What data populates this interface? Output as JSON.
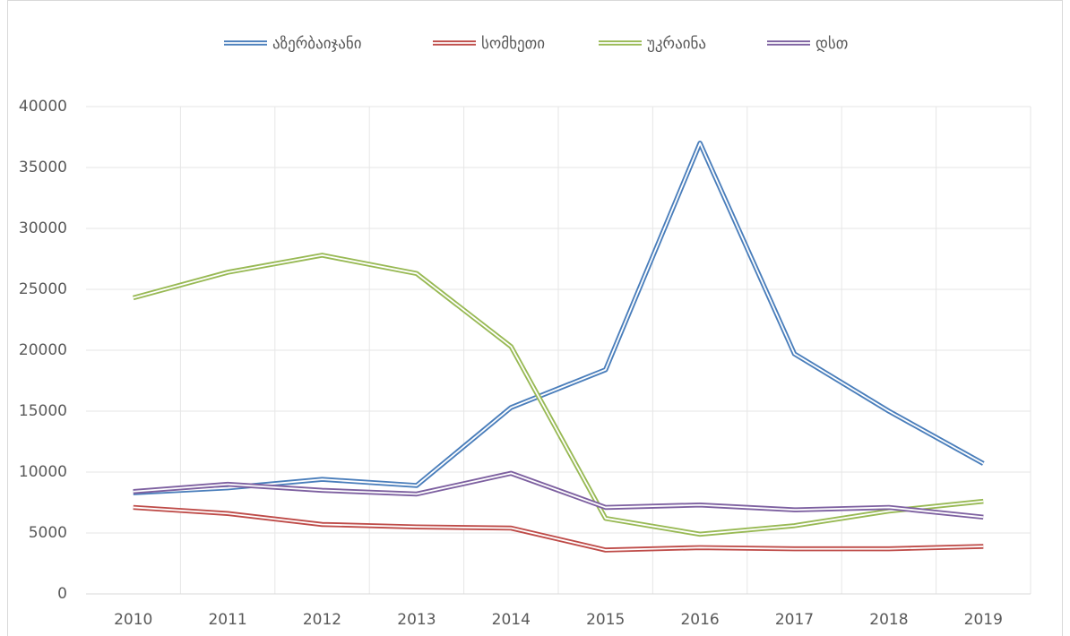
{
  "chart_data": {
    "type": "line",
    "categories": [
      "2010",
      "2011",
      "2012",
      "2013",
      "2014",
      "2015",
      "2016",
      "2017",
      "2018",
      "2019"
    ],
    "series": [
      {
        "name": "აზერბაიჯანი",
        "color": "#4a7ebb",
        "values": [
          8300,
          8700,
          9400,
          8900,
          15300,
          18400,
          37000,
          19700,
          15000,
          10700
        ]
      },
      {
        "name": "სომხეთი",
        "color": "#be4b48",
        "values": [
          7100,
          6600,
          5700,
          5500,
          5400,
          3600,
          3800,
          3700,
          3700,
          3900
        ]
      },
      {
        "name": "უკრაინა",
        "color": "#98b954",
        "values": [
          24300,
          26400,
          27800,
          26300,
          20300,
          6200,
          4900,
          5600,
          6800,
          7600
        ]
      },
      {
        "name": "დსთ",
        "color": "#7d60a0",
        "values": [
          8400,
          9000,
          8500,
          8200,
          9900,
          7100,
          7300,
          6900,
          7100,
          6300
        ]
      }
    ],
    "ylim": [
      0,
      40000
    ],
    "yticks": [
      0,
      5000,
      10000,
      15000,
      20000,
      25000,
      30000,
      35000,
      40000
    ],
    "grid": true,
    "legend": "top"
  }
}
